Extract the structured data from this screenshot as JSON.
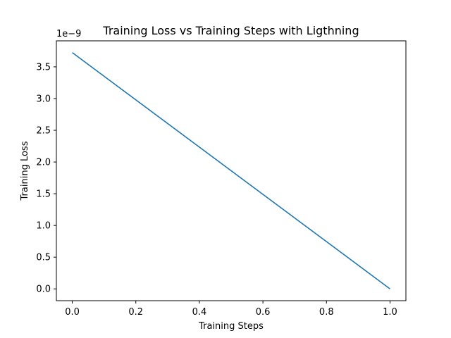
{
  "chart_data": {
    "type": "line",
    "title": "Training Loss vs Training Steps with Ligthning",
    "xlabel": "Training Steps",
    "ylabel": "Training Loss",
    "y_offset_label": "1e−9",
    "xlim": [
      -0.05,
      1.05
    ],
    "ylim": [
      -0.186,
      3.91
    ],
    "y_scale_factor": 1e-09,
    "x_ticks": [
      0.0,
      0.2,
      0.4,
      0.6,
      0.8,
      1.0
    ],
    "x_tick_labels": [
      "0.0",
      "0.2",
      "0.4",
      "0.6",
      "0.8",
      "1.0"
    ],
    "y_ticks": [
      0.0,
      0.5,
      1.0,
      1.5,
      2.0,
      2.5,
      3.0,
      3.5
    ],
    "y_tick_labels": [
      "0.0",
      "0.5",
      "1.0",
      "1.5",
      "2.0",
      "2.5",
      "3.0",
      "3.5"
    ],
    "grid": false,
    "legend": "none",
    "series": [
      {
        "color": "#1f77b4",
        "x": [
          0.0,
          1.0
        ],
        "y": [
          3.725e-09,
          0.0
        ]
      }
    ]
  }
}
